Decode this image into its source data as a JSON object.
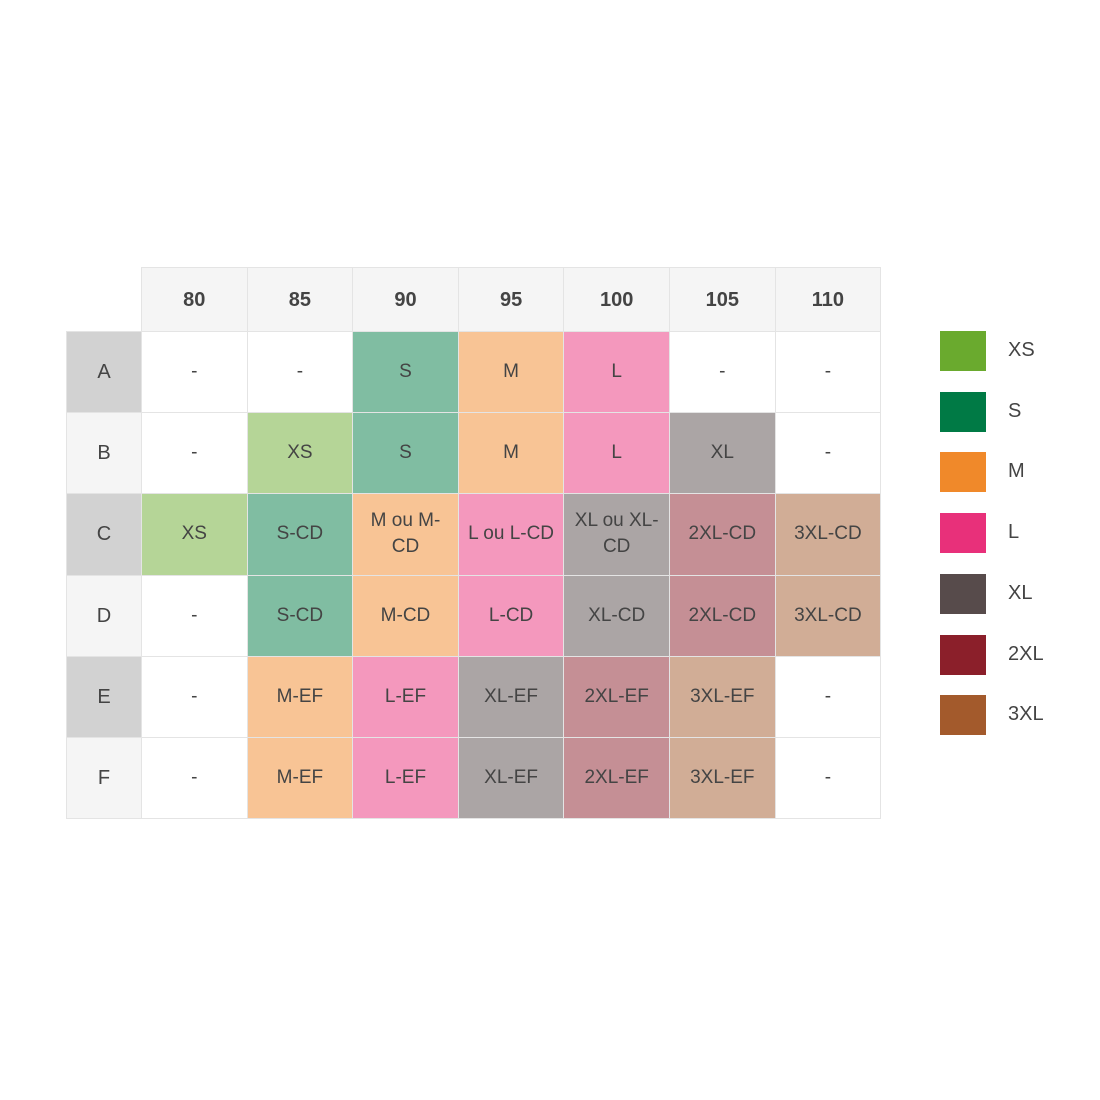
{
  "table": {
    "columns": [
      "80",
      "85",
      "90",
      "95",
      "100",
      "105",
      "110"
    ],
    "rows": [
      {
        "label": "A",
        "cells": [
          "-",
          "-",
          "S",
          "M",
          "L",
          "-",
          "-"
        ]
      },
      {
        "label": "B",
        "cells": [
          "-",
          "XS",
          "S",
          "M",
          "L",
          "XL",
          "-"
        ]
      },
      {
        "label": "C",
        "cells": [
          "XS",
          "S-CD",
          "M ou M-CD",
          "L ou L-CD",
          "XL ou XL-CD",
          "2XL-CD",
          "3XL-CD"
        ]
      },
      {
        "label": "D",
        "cells": [
          "-",
          "S-CD",
          "M-CD",
          "L-CD",
          "XL-CD",
          "2XL-CD",
          "3XL-CD"
        ]
      },
      {
        "label": "E",
        "cells": [
          "-",
          "M-EF",
          "L-EF",
          "XL-EF",
          "2XL-EF",
          "3XL-EF",
          "-"
        ]
      },
      {
        "label": "F",
        "cells": [
          "-",
          "M-EF",
          "L-EF",
          "XL-EF",
          "2XL-EF",
          "3XL-EF",
          "-"
        ]
      }
    ]
  },
  "legend": [
    {
      "label": "XS",
      "color": "#6aaa2e"
    },
    {
      "label": "S",
      "color": "#007a45"
    },
    {
      "label": "M",
      "color": "#f0892a"
    },
    {
      "label": "L",
      "color": "#e8307a"
    },
    {
      "label": "XL",
      "color": "#574b4b"
    },
    {
      "label": "2XL",
      "color": "#8b1f2a"
    },
    {
      "label": "3XL",
      "color": "#a35a2c"
    }
  ]
}
